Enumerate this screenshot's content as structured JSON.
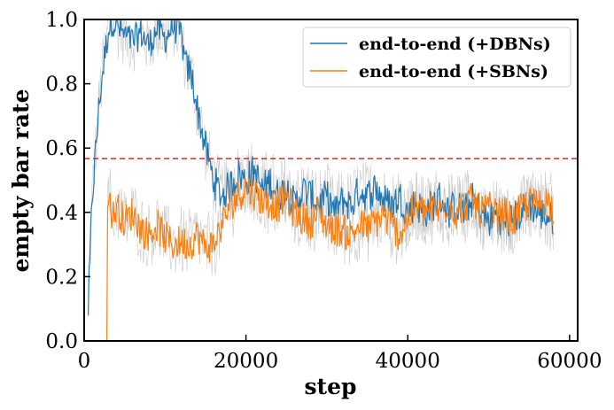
{
  "chart_data": {
    "type": "line",
    "title": "",
    "xlabel": "step",
    "ylabel": "empty bar rate",
    "xlim": [
      0,
      61000
    ],
    "ylim": [
      0.0,
      1.0
    ],
    "xticks": [
      0,
      20000,
      40000,
      60000
    ],
    "xtick_labels": [
      "0",
      "20000",
      "40000",
      "60000"
    ],
    "yticks": [
      0.0,
      0.2,
      0.4,
      0.6,
      0.8,
      1.0
    ],
    "ytick_labels": [
      "0.0",
      "0.2",
      "0.4",
      "0.6",
      "0.8",
      "1.0"
    ],
    "grid": false,
    "legend_position": "top-right",
    "reference_line": {
      "y": 0.567,
      "style": "dashed",
      "color": "#d62728"
    },
    "raw_trace_color": "#bbbbbb",
    "series": [
      {
        "name": "end-to-end (+DBNs)",
        "color": "#1f77b4",
        "x": [
          500,
          1000,
          1500,
          2000,
          2500,
          3000,
          3500,
          4000,
          5000,
          6000,
          7000,
          8000,
          9000,
          10000,
          11000,
          12000,
          12500,
          13000,
          13500,
          14000,
          14500,
          15000,
          15500,
          16000,
          17000,
          18000,
          19000,
          20000,
          21000,
          22000,
          23000,
          24000,
          25000,
          26000,
          27000,
          28000,
          29000,
          30000,
          31000,
          32000,
          33000,
          34000,
          35000,
          36000,
          37000,
          38000,
          39000,
          40000,
          41000,
          42000,
          43000,
          44000,
          45000,
          46000,
          47000,
          48000,
          49000,
          50000,
          51000,
          52000,
          53000,
          54000,
          55000,
          56000,
          57000,
          58000
        ],
        "y": [
          0.1,
          0.45,
          0.62,
          0.78,
          0.88,
          0.97,
          1.0,
          0.98,
          0.95,
          0.93,
          0.96,
          0.92,
          0.97,
          0.94,
          0.98,
          0.95,
          0.86,
          0.84,
          0.8,
          0.72,
          0.66,
          0.6,
          0.55,
          0.5,
          0.45,
          0.48,
          0.52,
          0.5,
          0.53,
          0.47,
          0.5,
          0.45,
          0.48,
          0.42,
          0.47,
          0.45,
          0.43,
          0.45,
          0.4,
          0.44,
          0.42,
          0.47,
          0.45,
          0.48,
          0.44,
          0.42,
          0.45,
          0.4,
          0.43,
          0.4,
          0.42,
          0.45,
          0.4,
          0.42,
          0.4,
          0.44,
          0.4,
          0.37,
          0.4,
          0.36,
          0.38,
          0.4,
          0.43,
          0.4,
          0.39,
          0.38
        ]
      },
      {
        "name": "end-to-end (+SBNs)",
        "color": "#ff7f0e",
        "x": [
          2500,
          3000,
          3500,
          4000,
          5000,
          6000,
          7000,
          8000,
          9000,
          10000,
          11000,
          12000,
          13000,
          14000,
          15000,
          16000,
          17000,
          18000,
          19000,
          20000,
          21000,
          22000,
          23000,
          24000,
          25000,
          26000,
          27000,
          28000,
          29000,
          30000,
          31000,
          32000,
          33000,
          34000,
          35000,
          36000,
          37000,
          38000,
          39000,
          40000,
          41000,
          42000,
          43000,
          44000,
          45000,
          46000,
          47000,
          48000,
          49000,
          50000,
          51000,
          52000,
          53000,
          54000,
          55000,
          56000,
          57000,
          58000
        ],
        "y": [
          0.0,
          0.48,
          0.38,
          0.42,
          0.37,
          0.4,
          0.35,
          0.33,
          0.36,
          0.32,
          0.3,
          0.31,
          0.3,
          0.33,
          0.29,
          0.3,
          0.36,
          0.42,
          0.45,
          0.48,
          0.46,
          0.44,
          0.43,
          0.42,
          0.45,
          0.4,
          0.38,
          0.37,
          0.4,
          0.36,
          0.35,
          0.34,
          0.33,
          0.36,
          0.35,
          0.37,
          0.39,
          0.36,
          0.33,
          0.38,
          0.42,
          0.4,
          0.41,
          0.4,
          0.43,
          0.4,
          0.42,
          0.44,
          0.4,
          0.41,
          0.39,
          0.4,
          0.37,
          0.41,
          0.43,
          0.42,
          0.44,
          0.41
        ]
      }
    ]
  }
}
